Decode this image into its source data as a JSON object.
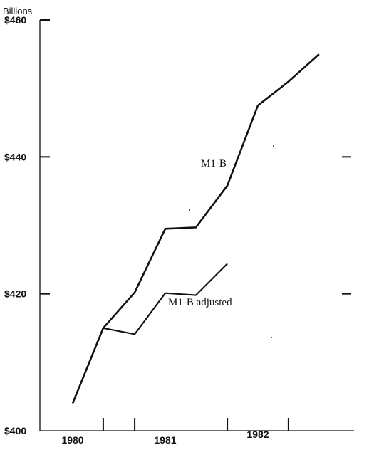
{
  "chart_data": {
    "type": "line",
    "ylabel": "Billions",
    "ylim": [
      400,
      460
    ],
    "xlim": [
      1980,
      1982.66
    ],
    "grid": false,
    "y_ticks": [
      {
        "value": 400,
        "label": "$400"
      },
      {
        "value": 420,
        "label": "$420"
      },
      {
        "value": 440,
        "label": "$440"
      },
      {
        "value": 460,
        "label": "$460"
      }
    ],
    "x_ticks": [
      {
        "value": 1980,
        "label": "1980"
      },
      {
        "value": 1981,
        "label": "1981"
      },
      {
        "value": 1982,
        "label": "1982"
      }
    ],
    "x_minor_ticks": [
      1980.33,
      1980.67,
      1981.67,
      1982.33
    ],
    "right_ticks": [
      420,
      440
    ],
    "series": [
      {
        "name": "M1-B",
        "x": [
          1980.0,
          1980.33,
          1980.67,
          1981.0,
          1981.33,
          1981.67,
          1982.0,
          1982.33,
          1982.66
        ],
        "y": [
          404.0,
          415.0,
          420.2,
          429.5,
          429.7,
          435.8,
          447.5,
          451.0,
          455.0
        ]
      },
      {
        "name": "M1-B adjusted",
        "x": [
          1980.33,
          1980.67,
          1981.0,
          1981.33,
          1981.67
        ],
        "y": [
          415.0,
          414.1,
          420.1,
          419.8,
          424.4
        ]
      }
    ]
  }
}
